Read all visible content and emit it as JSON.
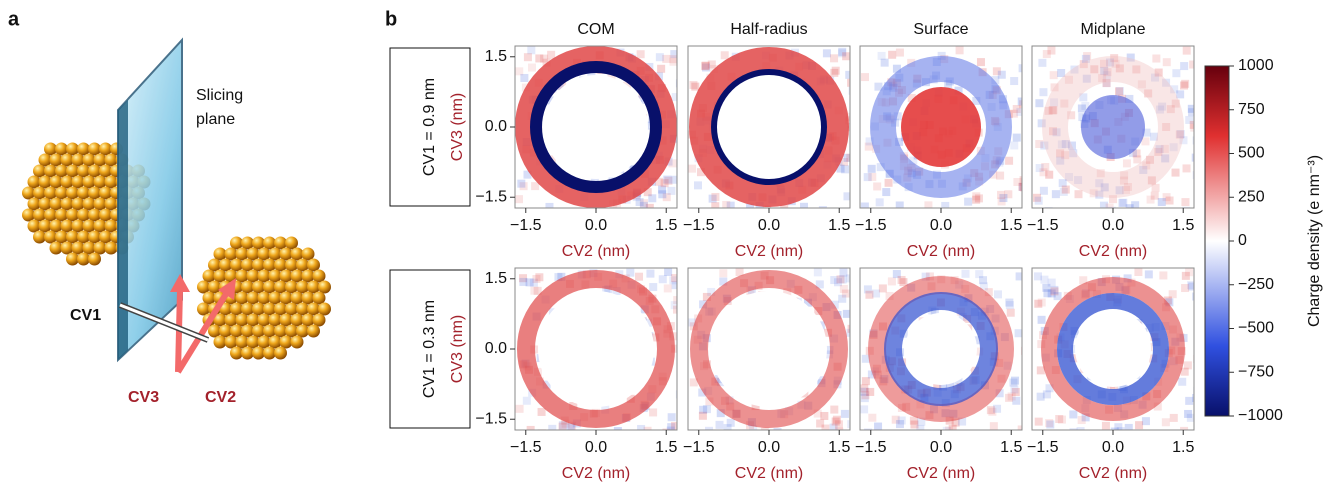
{
  "panel_a": {
    "label": "a",
    "plane_label": [
      "Slicing",
      "plane"
    ],
    "cv1": "CV1",
    "cv2": "CV2",
    "cv3": "CV3"
  },
  "panel_b": {
    "label": "b",
    "columns": [
      "COM",
      "Half-radius",
      "Surface",
      "Midplane"
    ],
    "rows": [
      "CV1 = 0.9 nm",
      "CV1 = 0.3 nm"
    ],
    "x_axis_label": "CV2 (nm)",
    "y_axis_label": "CV3 (nm)",
    "xlim": [
      -1.73,
      1.73
    ],
    "ylim": [
      -1.73,
      1.73
    ],
    "xticks": [
      {
        "value": -1.5,
        "label": "−1.5"
      },
      {
        "value": 0,
        "label": "0.0"
      },
      {
        "value": 1.5,
        "label": "1.5"
      }
    ],
    "yticks": [
      {
        "value": -1.5,
        "label": "−1.5"
      },
      {
        "value": 0,
        "label": "0.0"
      },
      {
        "value": 1.5,
        "label": "1.5"
      }
    ],
    "colorbar": {
      "label": "Charge density (e nm⁻³)",
      "lim": [
        -1000,
        1000
      ],
      "ticks": [
        1000,
        750,
        500,
        250,
        0,
        {
          "value": -250,
          "label": "−250"
        },
        {
          "value": -500,
          "label": "−500"
        },
        {
          "value": -750,
          "label": "−750"
        },
        {
          "value": -1000,
          "label": "−1000"
        }
      ]
    }
  }
}
